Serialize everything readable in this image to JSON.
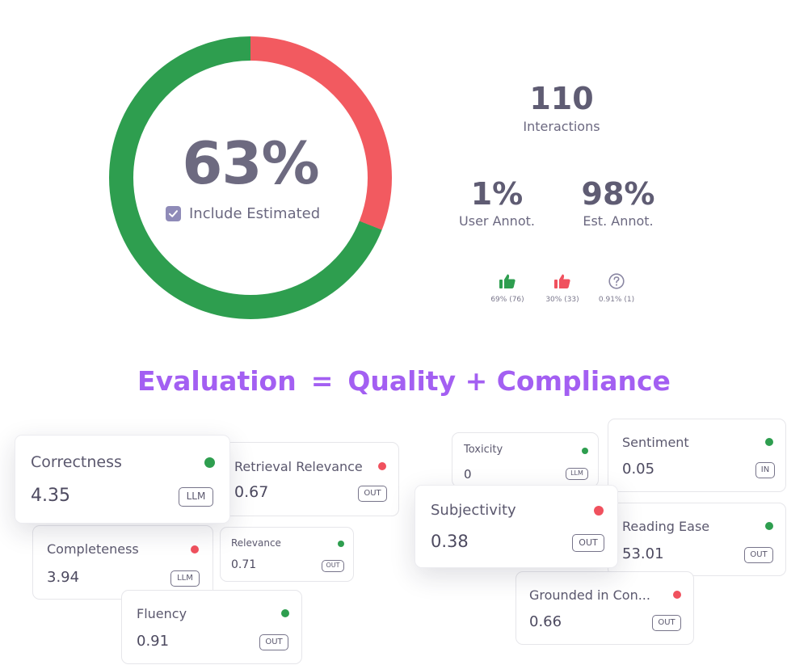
{
  "summary": {
    "score": "63%",
    "include_estimated_label": "Include Estimated",
    "include_estimated_checked": true,
    "positive_fraction": 0.69,
    "colors": {
      "positive": "#2e9e4f",
      "negative": "#f25a60"
    }
  },
  "stats": {
    "interactions": {
      "value": "110",
      "label": "Interactions"
    },
    "user_annot": {
      "value": "1%",
      "label": "User Annot."
    },
    "est_annot": {
      "value": "98%",
      "label": "Est. Annot."
    }
  },
  "votes": [
    {
      "icon": "thumbs-up-icon",
      "label": "69% (76)"
    },
    {
      "icon": "thumbs-down-icon",
      "label": "30% (33)"
    },
    {
      "icon": "question-icon",
      "label": "0.91% (1)"
    }
  ],
  "headline": {
    "left": "Evaluation",
    "eq": "=",
    "right": "Quality + Compliance",
    "color": "#a35ff2"
  },
  "cards": {
    "correctness": {
      "title": "Correctness",
      "value": "4.35",
      "badge": "LLM",
      "status": "green"
    },
    "retrieval_relevance": {
      "title": "Retrieval Relevance",
      "value": "0.67",
      "badge": "OUT",
      "status": "red"
    },
    "completeness": {
      "title": "Completeness",
      "value": "3.94",
      "badge": "LLM",
      "status": "red"
    },
    "relevance": {
      "title": "Relevance",
      "value": "0.71",
      "badge": "OUT",
      "status": "green"
    },
    "fluency": {
      "title": "Fluency",
      "value": "0.91",
      "badge": "OUT",
      "status": "green"
    },
    "toxicity": {
      "title": "Toxicity",
      "value": "0",
      "badge": "LLM",
      "status": "green"
    },
    "sentiment": {
      "title": "Sentiment",
      "value": "0.05",
      "badge": "IN",
      "status": "green"
    },
    "subjectivity": {
      "title": "Subjectivity",
      "value": "0.38",
      "badge": "OUT",
      "status": "red"
    },
    "reading_ease": {
      "title": "Reading Ease",
      "value": "53.01",
      "badge": "OUT",
      "status": "green"
    },
    "grounded": {
      "title": "Grounded in Con...",
      "value": "0.66",
      "badge": "OUT",
      "status": "red"
    }
  }
}
